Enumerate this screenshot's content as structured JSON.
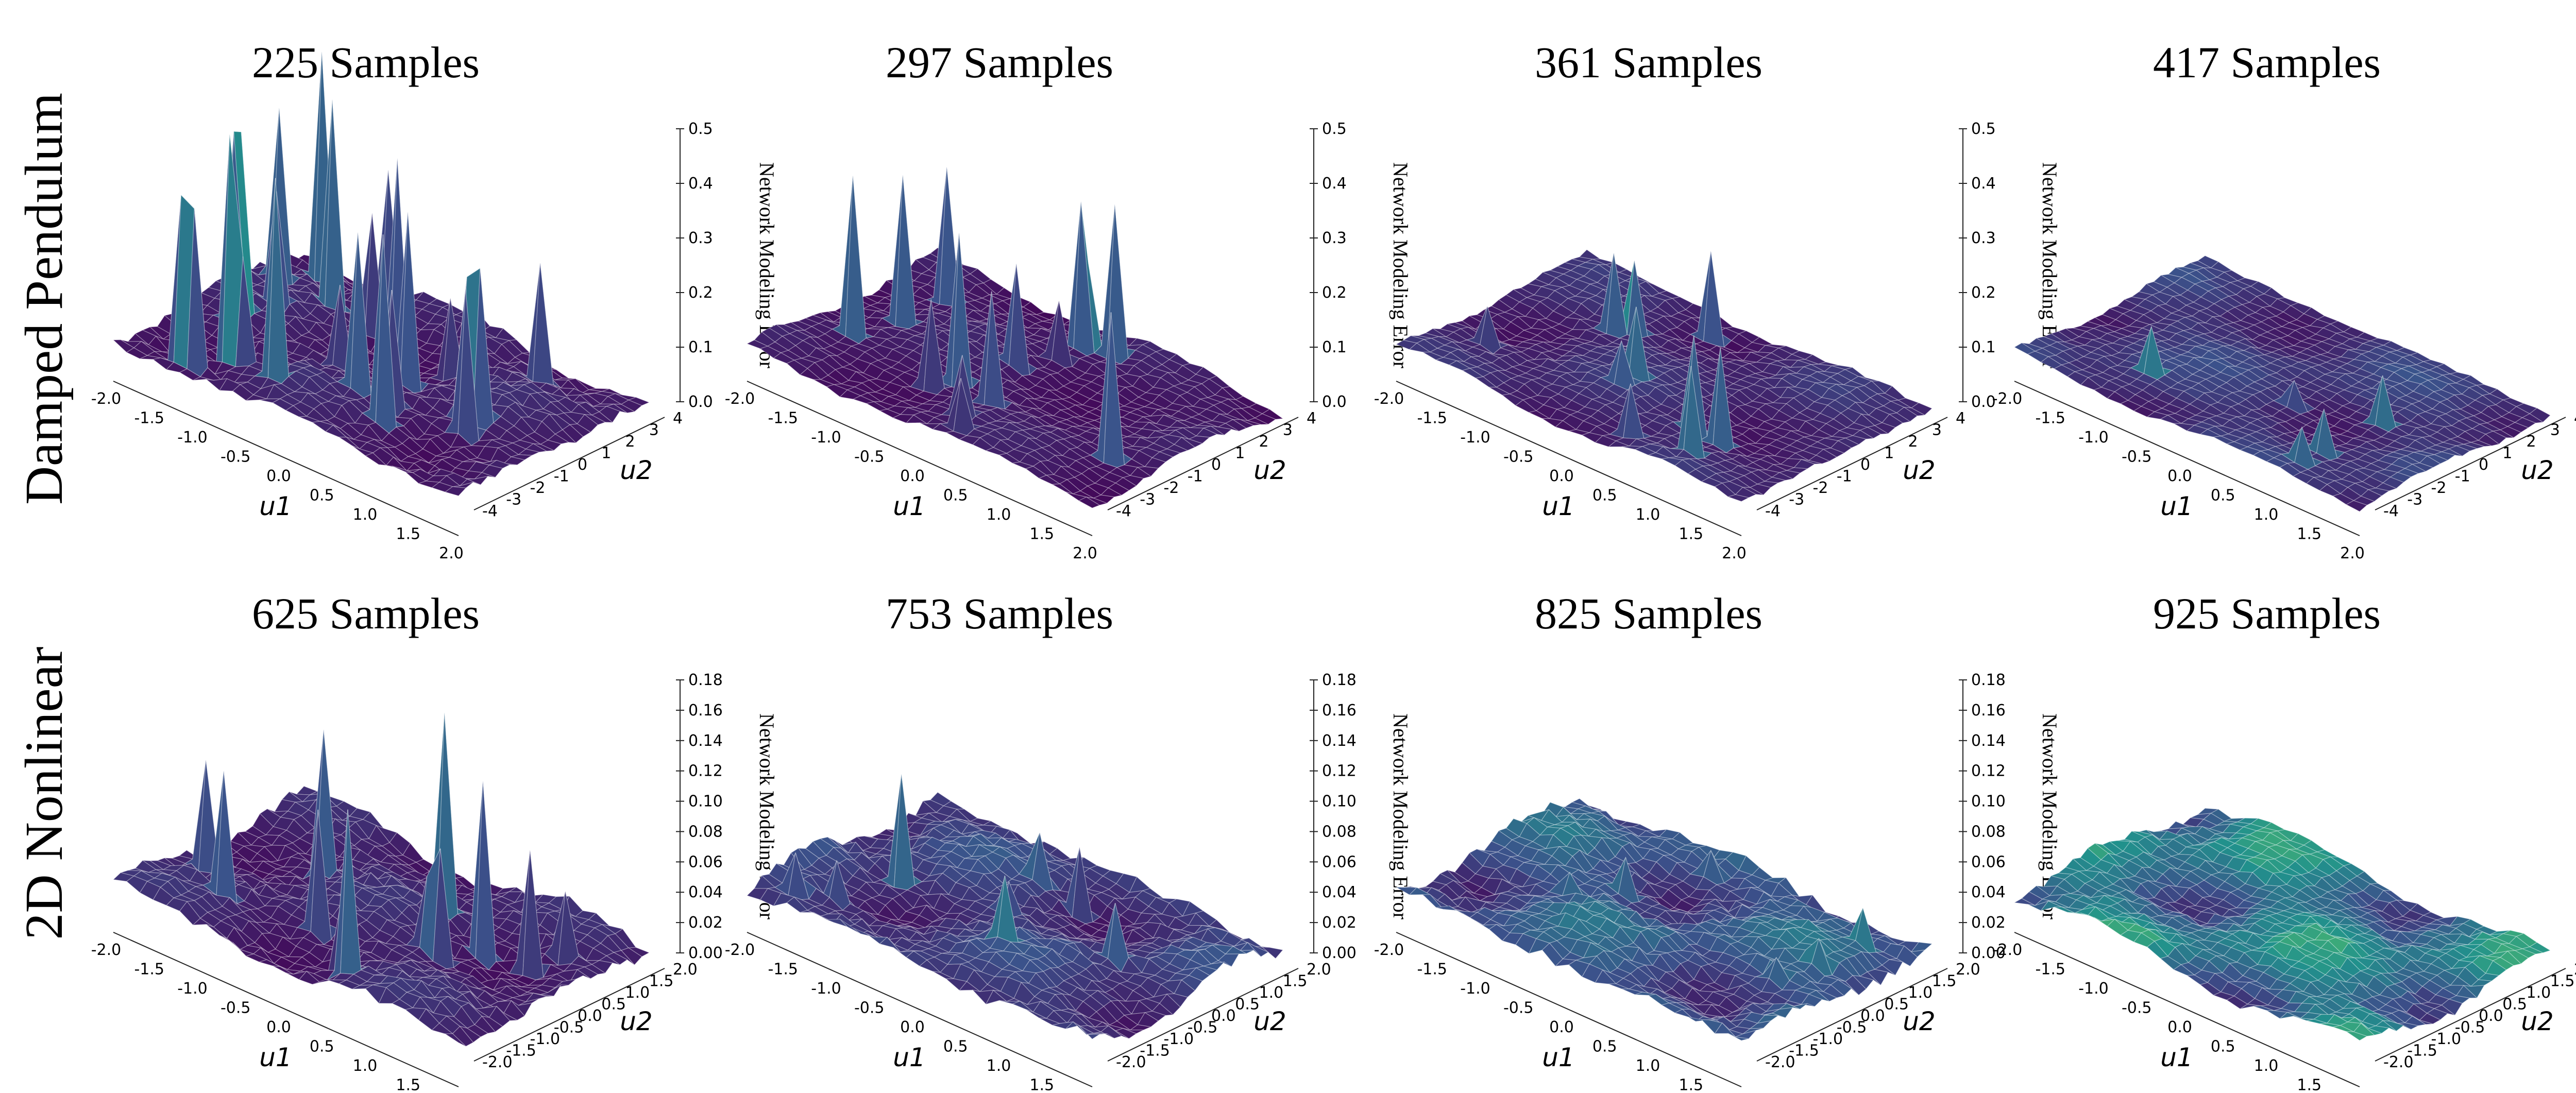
{
  "figure": {
    "rows": [
      {
        "label": "Damped Pendulum"
      },
      {
        "label": "2D Nonlinear"
      }
    ],
    "colormap": [
      "#440154",
      "#3b528b",
      "#21918c",
      "#5ec962",
      "#fde725"
    ]
  },
  "chart_data": [
    {
      "type": "surface3d",
      "title": "225 Samples",
      "xlabel": "u1",
      "ylabel": "u2",
      "zlabel": "Network Modeling Error",
      "xlim": [
        -2.0,
        2.0
      ],
      "ylim": [
        -4,
        4
      ],
      "zlim": [
        0.0,
        0.5
      ],
      "xticks": [
        "-2.0",
        "-1.5",
        "-1.0",
        "-0.5",
        "0.0",
        "0.5",
        "1.0",
        "1.5",
        "2.0"
      ],
      "yticks": [
        "-4",
        "-3",
        "-2",
        "-1",
        "0",
        "1",
        "2",
        "3",
        "4"
      ],
      "zticks": [
        "0.0",
        "0.1",
        "0.2",
        "0.3",
        "0.4",
        "0.5"
      ],
      "base_error": 0.05,
      "spikes": 24,
      "max_error": 0.45
    },
    {
      "type": "surface3d",
      "title": "297 Samples",
      "xlabel": "u1",
      "ylabel": "u2",
      "zlabel": "Network Modeling Error",
      "xlim": [
        -2.0,
        2.0
      ],
      "ylim": [
        -4,
        4
      ],
      "zlim": [
        0.0,
        0.5
      ],
      "xticks": [
        "-2.0",
        "-1.5",
        "-1.0",
        "-0.5",
        "0.0",
        "0.5",
        "1.0",
        "1.5",
        "2.0"
      ],
      "yticks": [
        "-4",
        "-3",
        "-2",
        "-1",
        "0",
        "1",
        "2",
        "3",
        "4"
      ],
      "zticks": [
        "0.0",
        "0.1",
        "0.2",
        "0.3",
        "0.4",
        "0.5"
      ],
      "base_error": 0.03,
      "spikes": 14,
      "max_error": 0.33
    },
    {
      "type": "surface3d",
      "title": "361 Samples",
      "xlabel": "u1",
      "ylabel": "u2",
      "zlabel": "Network Modeling Error",
      "xlim": [
        -2.0,
        2.0
      ],
      "ylim": [
        -4,
        4
      ],
      "zlim": [
        0.0,
        0.5
      ],
      "xticks": [
        "-2.0",
        "-1.5",
        "-1.0",
        "-0.5",
        "0.0",
        "0.5",
        "1.0",
        "1.5",
        "2.0"
      ],
      "yticks": [
        "-4",
        "-3",
        "-2",
        "-1",
        "0",
        "1",
        "2",
        "3",
        "4"
      ],
      "zticks": [
        "0.0",
        "0.1",
        "0.2",
        "0.3",
        "0.4",
        "0.5"
      ],
      "base_error": 0.03,
      "spikes": 10,
      "max_error": 0.2
    },
    {
      "type": "surface3d",
      "title": "417 Samples",
      "xlabel": "u1",
      "ylabel": "u2",
      "zlabel": "Network Modeling Error",
      "xlim": [
        -2.0,
        2.0
      ],
      "ylim": [
        -4,
        4
      ],
      "zlim": [
        0.0,
        0.5
      ],
      "xticks": [
        "-2.0",
        "-1.5",
        "-1.0",
        "-0.5",
        "0.0",
        "0.5",
        "1.0",
        "1.5",
        "2.0"
      ],
      "yticks": [
        "-4",
        "-3",
        "-2",
        "-1",
        "0",
        "1",
        "2",
        "3",
        "4"
      ],
      "zticks": [
        "0.0",
        "0.1",
        "0.2",
        "0.3",
        "0.4",
        "0.5"
      ],
      "base_error": 0.02,
      "spikes": 5,
      "max_error": 0.1
    },
    {
      "type": "surface3d",
      "title": "625 Samples",
      "xlabel": "u1",
      "ylabel": "u2",
      "zlabel": "Network Modeling Error",
      "xlim": [
        -2.0,
        2.0
      ],
      "ylim": [
        -2.0,
        2.0
      ],
      "zlim": [
        0.0,
        0.18
      ],
      "xticks": [
        "-2.0",
        "-1.5",
        "-1.0",
        "-0.5",
        "0.0",
        "0.5",
        "1.0",
        "1.5",
        "2.0"
      ],
      "yticks": [
        "-2.0",
        "-1.5",
        "-1.0",
        "-0.5",
        "0.0",
        "0.5",
        "1.0",
        "1.5",
        "2.0"
      ],
      "zticks": [
        "0.00",
        "0.02",
        "0.04",
        "0.06",
        "0.08",
        "0.10",
        "0.12",
        "0.14",
        "0.16",
        "0.18"
      ],
      "base_error": 0.02,
      "spikes": 12,
      "max_error": 0.15
    },
    {
      "type": "surface3d",
      "title": "753 Samples",
      "xlabel": "u1",
      "ylabel": "u2",
      "zlabel": "Network Modeling Error",
      "xlim": [
        -2.0,
        2.0
      ],
      "ylim": [
        -2.0,
        2.0
      ],
      "zlim": [
        0.0,
        0.18
      ],
      "xticks": [
        "-2.0",
        "-1.5",
        "-1.0",
        "-0.5",
        "0.0",
        "0.5",
        "1.0",
        "1.5",
        "2.0"
      ],
      "yticks": [
        "-2.0",
        "-1.5",
        "-1.0",
        "-0.5",
        "0.0",
        "0.5",
        "1.0",
        "1.5",
        "2.0"
      ],
      "zticks": [
        "0.00",
        "0.02",
        "0.04",
        "0.06",
        "0.08",
        "0.10",
        "0.12",
        "0.14",
        "0.16",
        "0.18"
      ],
      "base_error": 0.02,
      "spikes": 8,
      "max_error": 0.09
    },
    {
      "type": "surface3d",
      "title": "825 Samples",
      "xlabel": "u1",
      "ylabel": "u2",
      "zlabel": "Network Modeling Error",
      "xlim": [
        -2.0,
        2.0
      ],
      "ylim": [
        -2.0,
        2.0
      ],
      "zlim": [
        0.0,
        0.18
      ],
      "xticks": [
        "-2.0",
        "-1.5",
        "-1.0",
        "-0.5",
        "0.0",
        "0.5",
        "1.0",
        "1.5",
        "2.0"
      ],
      "yticks": [
        "-2.0",
        "-1.5",
        "-1.0",
        "-0.5",
        "0.0",
        "0.5",
        "1.0",
        "1.5",
        "2.0"
      ],
      "zticks": [
        "0.00",
        "0.02",
        "0.04",
        "0.06",
        "0.08",
        "0.10",
        "0.12",
        "0.14",
        "0.16",
        "0.18"
      ],
      "base_error": 0.02,
      "spikes": 6,
      "max_error": 0.06
    },
    {
      "type": "surface3d",
      "title": "925 Samples",
      "xlabel": "u1",
      "ylabel": "u2",
      "zlabel": "Network Modeling Error",
      "xlim": [
        -2.0,
        2.0
      ],
      "ylim": [
        -2.0,
        2.0
      ],
      "zlim": [
        0.0,
        0.18
      ],
      "xticks": [
        "-2.0",
        "-1.5",
        "-1.0",
        "-0.5",
        "0.0",
        "0.5",
        "1.0",
        "1.5",
        "2.0"
      ],
      "yticks": [
        "-2.0",
        "-1.5",
        "-1.0",
        "-0.5",
        "0.0",
        "0.5",
        "1.0",
        "1.5",
        "2.0"
      ],
      "zticks": [
        "0.00",
        "0.02",
        "0.04",
        "0.06",
        "0.08",
        "0.10",
        "0.12",
        "0.14",
        "0.16",
        "0.18"
      ],
      "base_error": 0.015,
      "spikes": 0,
      "max_error": 0.03
    }
  ]
}
